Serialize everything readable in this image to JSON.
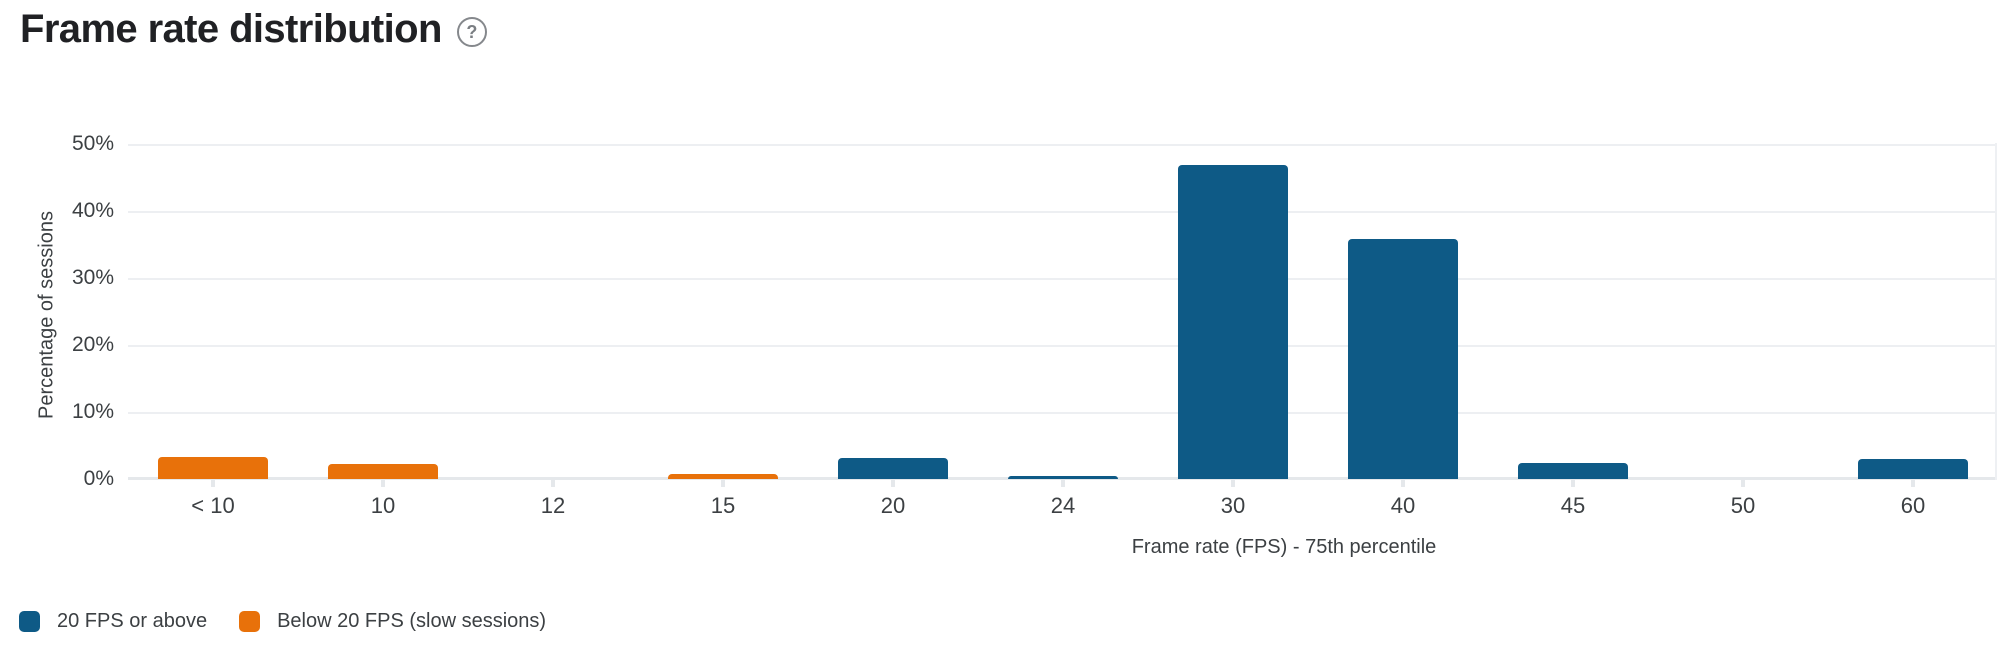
{
  "header": {
    "title": "Frame rate distribution",
    "help_glyph": "?"
  },
  "colors": {
    "above_blue": "#0e5a86",
    "below_orange": "#e8710a",
    "grid": "#edeff2",
    "text": "#3c4043",
    "title_text": "#202124"
  },
  "chart_data": {
    "type": "bar",
    "title": "Frame rate distribution",
    "xlabel": "Frame rate (FPS) - 75th percentile",
    "ylabel": "Percentage of sessions",
    "categories": [
      "< 10",
      "10",
      "12",
      "15",
      "20",
      "24",
      "30",
      "40",
      "45",
      "50",
      "60"
    ],
    "series": [
      {
        "name": "20 FPS or above",
        "color": "#0e5a86",
        "values": [
          0,
          0,
          0,
          0,
          3.1,
          0.5,
          46.8,
          35.8,
          2.4,
          0,
          3.0
        ]
      },
      {
        "name": "Below 20 FPS (slow sessions)",
        "color": "#e8710a",
        "values": [
          3.3,
          2.3,
          0,
          0.7,
          0,
          0,
          0,
          0,
          0,
          0,
          0
        ]
      }
    ],
    "ylim": [
      0,
      50
    ],
    "ytick_values": [
      0,
      10,
      20,
      30,
      40,
      50
    ],
    "ytick_labels": [
      "0%",
      "10%",
      "20%",
      "30%",
      "40%",
      "50%"
    ],
    "grid": true,
    "legend_position": "bottom-left"
  }
}
